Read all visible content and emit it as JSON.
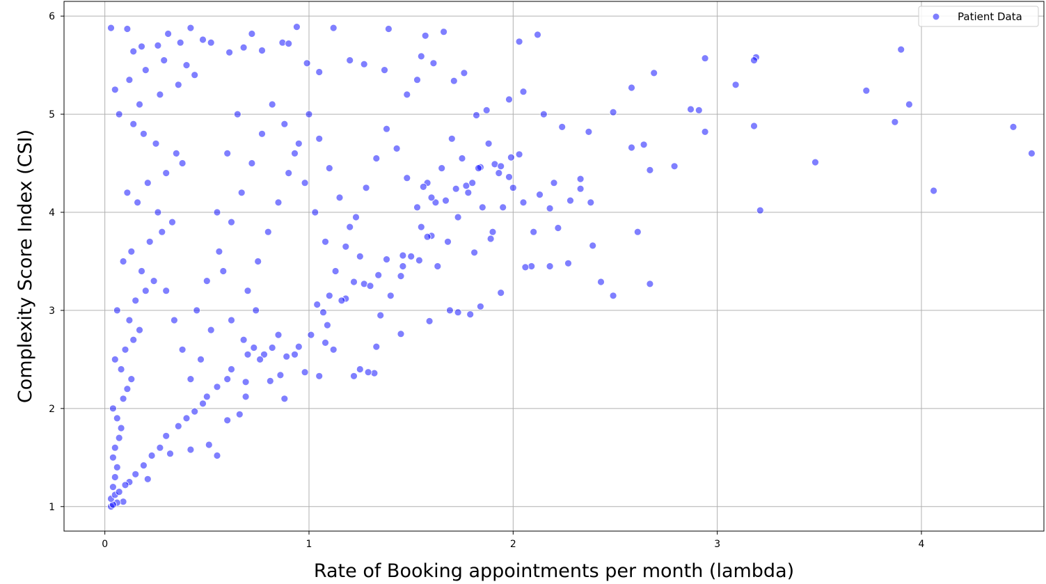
{
  "chart_data": {
    "type": "scatter",
    "title": "",
    "xlabel": "Rate of Booking appointments per month (lambda)",
    "ylabel": "Complexity Score Index (CSI)",
    "xlim": [
      -0.2,
      4.6
    ],
    "ylim": [
      0.75,
      6.15
    ],
    "xticks": [
      0,
      1,
      2,
      3,
      4
    ],
    "xtick_labels": [
      "0",
      "1",
      "2",
      "3",
      "4"
    ],
    "yticks": [
      1,
      2,
      3,
      4,
      5,
      6
    ],
    "ytick_labels": [
      "1",
      "2",
      "3",
      "4",
      "5",
      "6"
    ],
    "grid": true,
    "legend": {
      "position": "top-right",
      "entries": [
        "Patient Data"
      ]
    },
    "series": [
      {
        "name": "Patient Data",
        "color": "#0000ff",
        "alpha": 0.5,
        "edgecolor": "#ffffff",
        "points": [
          [
            0.03,
            5.88
          ],
          [
            0.11,
            5.87
          ],
          [
            0.31,
            5.82
          ],
          [
            0.42,
            5.88
          ],
          [
            0.72,
            5.82
          ],
          [
            0.94,
            5.89
          ],
          [
            1.12,
            5.88
          ],
          [
            1.39,
            5.87
          ],
          [
            1.57,
            5.8
          ],
          [
            1.66,
            5.84
          ],
          [
            2.12,
            5.81
          ],
          [
            2.03,
            5.74
          ],
          [
            3.19,
            5.58
          ],
          [
            3.18,
            5.55
          ],
          [
            3.9,
            5.66
          ],
          [
            2.94,
            5.57
          ],
          [
            2.69,
            5.42
          ],
          [
            3.09,
            5.3
          ],
          [
            2.58,
            5.27
          ],
          [
            3.73,
            5.24
          ],
          [
            3.94,
            5.1
          ],
          [
            2.87,
            5.05
          ],
          [
            2.91,
            5.04
          ],
          [
            3.87,
            4.92
          ],
          [
            2.49,
            5.02
          ],
          [
            3.18,
            4.88
          ],
          [
            4.45,
            4.87
          ],
          [
            2.94,
            4.82
          ],
          [
            4.54,
            4.6
          ],
          [
            2.58,
            4.66
          ],
          [
            2.64,
            4.69
          ],
          [
            2.79,
            4.47
          ],
          [
            3.48,
            4.51
          ],
          [
            2.67,
            4.43
          ],
          [
            4.06,
            4.22
          ],
          [
            3.21,
            4.02
          ],
          [
            2.61,
            3.8
          ],
          [
            2.67,
            3.27
          ],
          [
            2.43,
            3.29
          ],
          [
            2.49,
            3.15
          ],
          [
            2.39,
            3.66
          ],
          [
            2.27,
            3.48
          ],
          [
            2.18,
            3.45
          ],
          [
            2.09,
            3.45
          ],
          [
            2.06,
            3.44
          ],
          [
            1.94,
            3.18
          ],
          [
            1.89,
            3.73
          ],
          [
            1.81,
            3.59
          ],
          [
            1.84,
            3.04
          ],
          [
            1.79,
            2.96
          ],
          [
            1.73,
            2.98
          ],
          [
            1.69,
            3.0
          ],
          [
            1.59,
            2.89
          ],
          [
            1.45,
            2.76
          ],
          [
            1.32,
            2.36
          ],
          [
            1.29,
            2.37
          ],
          [
            1.22,
            2.33
          ],
          [
            1.25,
            2.4
          ],
          [
            1.33,
            2.63
          ],
          [
            1.05,
            2.33
          ],
          [
            0.98,
            2.37
          ],
          [
            0.88,
            2.1
          ],
          [
            0.86,
            2.34
          ],
          [
            0.81,
            2.28
          ],
          [
            0.69,
            2.12
          ],
          [
            0.69,
            2.27
          ],
          [
            0.66,
            1.94
          ],
          [
            0.6,
            1.88
          ],
          [
            0.55,
            1.52
          ],
          [
            0.51,
            1.63
          ],
          [
            0.42,
            1.58
          ],
          [
            0.32,
            1.54
          ],
          [
            0.21,
            1.28
          ],
          [
            0.12,
            1.25
          ],
          [
            0.09,
            1.05
          ],
          [
            0.06,
            1.04
          ],
          [
            0.03,
            1.0
          ],
          [
            0.04,
            1.02
          ],
          [
            0.03,
            1.08
          ],
          [
            0.05,
            1.12
          ],
          [
            0.14,
            5.64
          ],
          [
            0.18,
            5.69
          ],
          [
            0.26,
            5.7
          ],
          [
            0.37,
            5.73
          ],
          [
            0.48,
            5.76
          ],
          [
            0.52,
            5.73
          ],
          [
            0.61,
            5.63
          ],
          [
            0.68,
            5.68
          ],
          [
            0.77,
            5.65
          ],
          [
            0.87,
            5.73
          ],
          [
            0.9,
            5.72
          ],
          [
            0.99,
            5.52
          ],
          [
            1.05,
            5.43
          ],
          [
            1.2,
            5.55
          ],
          [
            1.27,
            5.51
          ],
          [
            1.37,
            5.45
          ],
          [
            1.48,
            5.2
          ],
          [
            1.53,
            5.35
          ],
          [
            1.55,
            5.59
          ],
          [
            1.61,
            5.52
          ],
          [
            1.71,
            5.34
          ],
          [
            1.76,
            5.42
          ],
          [
            1.82,
            4.99
          ],
          [
            1.87,
            5.04
          ],
          [
            1.98,
            5.15
          ],
          [
            2.05,
            5.23
          ],
          [
            2.15,
            5.0
          ],
          [
            2.24,
            4.87
          ],
          [
            2.37,
            4.82
          ],
          [
            2.28,
            4.12
          ],
          [
            2.38,
            4.1
          ],
          [
            2.33,
            4.24
          ],
          [
            2.33,
            4.34
          ],
          [
            2.2,
            4.3
          ],
          [
            2.18,
            4.04
          ],
          [
            2.13,
            4.18
          ],
          [
            2.22,
            3.84
          ],
          [
            2.1,
            3.8
          ],
          [
            2.05,
            4.1
          ],
          [
            1.99,
            4.56
          ],
          [
            2.03,
            4.59
          ],
          [
            1.98,
            4.36
          ],
          [
            1.91,
            4.49
          ],
          [
            1.94,
            4.47
          ],
          [
            1.84,
            4.46
          ],
          [
            1.77,
            4.27
          ],
          [
            1.72,
            4.24
          ],
          [
            1.67,
            4.12
          ],
          [
            1.62,
            4.1
          ],
          [
            1.58,
            4.3
          ],
          [
            1.56,
            4.26
          ],
          [
            1.6,
            3.76
          ],
          [
            1.54,
            3.51
          ],
          [
            1.46,
            3.56
          ],
          [
            1.46,
            3.45
          ],
          [
            1.38,
            3.52
          ],
          [
            1.34,
            3.36
          ],
          [
            1.27,
            3.27
          ],
          [
            1.22,
            3.29
          ],
          [
            1.18,
            3.12
          ],
          [
            1.16,
            3.1
          ],
          [
            1.1,
            3.15
          ],
          [
            1.04,
            3.06
          ],
          [
            1.07,
            2.98
          ],
          [
            1.09,
            2.85
          ],
          [
            1.12,
            2.6
          ],
          [
            1.08,
            2.67
          ],
          [
            1.01,
            2.75
          ],
          [
            0.95,
            2.63
          ],
          [
            0.93,
            2.55
          ],
          [
            0.89,
            2.53
          ],
          [
            0.85,
            2.75
          ],
          [
            0.82,
            2.62
          ],
          [
            0.78,
            2.55
          ],
          [
            0.76,
            2.5
          ],
          [
            0.73,
            2.62
          ],
          [
            0.7,
            2.55
          ],
          [
            0.62,
            2.4
          ],
          [
            0.6,
            2.3
          ],
          [
            0.55,
            2.22
          ],
          [
            0.5,
            2.12
          ],
          [
            0.48,
            2.05
          ],
          [
            0.44,
            1.97
          ],
          [
            0.4,
            1.9
          ],
          [
            0.36,
            1.82
          ],
          [
            0.3,
            1.72
          ],
          [
            0.27,
            1.6
          ],
          [
            0.23,
            1.52
          ],
          [
            0.19,
            1.42
          ],
          [
            0.15,
            1.33
          ],
          [
            0.1,
            1.22
          ],
          [
            0.07,
            1.15
          ],
          [
            0.04,
            1.2
          ],
          [
            0.05,
            1.3
          ],
          [
            0.06,
            1.4
          ],
          [
            0.04,
            1.5
          ],
          [
            0.05,
            1.6
          ],
          [
            0.07,
            1.7
          ],
          [
            0.08,
            1.8
          ],
          [
            0.06,
            1.9
          ],
          [
            0.04,
            2.0
          ],
          [
            0.09,
            2.1
          ],
          [
            0.11,
            2.2
          ],
          [
            0.13,
            2.3
          ],
          [
            0.08,
            2.4
          ],
          [
            0.05,
            2.5
          ],
          [
            0.1,
            2.6
          ],
          [
            0.14,
            2.7
          ],
          [
            0.17,
            2.8
          ],
          [
            0.12,
            2.9
          ],
          [
            0.06,
            3.0
          ],
          [
            0.15,
            3.1
          ],
          [
            0.2,
            3.2
          ],
          [
            0.24,
            3.3
          ],
          [
            0.18,
            3.4
          ],
          [
            0.09,
            3.5
          ],
          [
            0.13,
            3.6
          ],
          [
            0.22,
            3.7
          ],
          [
            0.28,
            3.8
          ],
          [
            0.33,
            3.9
          ],
          [
            0.26,
            4.0
          ],
          [
            0.16,
            4.1
          ],
          [
            0.11,
            4.2
          ],
          [
            0.21,
            4.3
          ],
          [
            0.3,
            4.4
          ],
          [
            0.38,
            4.5
          ],
          [
            0.35,
            4.6
          ],
          [
            0.25,
            4.7
          ],
          [
            0.19,
            4.8
          ],
          [
            0.14,
            4.9
          ],
          [
            0.07,
            5.0
          ],
          [
            0.17,
            5.1
          ],
          [
            0.27,
            5.2
          ],
          [
            0.36,
            5.3
          ],
          [
            0.44,
            5.4
          ],
          [
            0.4,
            5.5
          ],
          [
            0.29,
            5.55
          ],
          [
            0.2,
            5.45
          ],
          [
            0.12,
            5.35
          ],
          [
            0.05,
            5.25
          ],
          [
            0.45,
            3.0
          ],
          [
            0.5,
            3.3
          ],
          [
            0.56,
            3.6
          ],
          [
            0.62,
            3.9
          ],
          [
            0.67,
            4.2
          ],
          [
            0.72,
            4.5
          ],
          [
            0.77,
            4.8
          ],
          [
            0.82,
            5.1
          ],
          [
            0.88,
            4.9
          ],
          [
            0.93,
            4.6
          ],
          [
            0.98,
            4.3
          ],
          [
            1.03,
            4.0
          ],
          [
            1.08,
            3.7
          ],
          [
            1.13,
            3.4
          ],
          [
            1.18,
            3.65
          ],
          [
            1.23,
            3.95
          ],
          [
            1.28,
            4.25
          ],
          [
            1.33,
            4.55
          ],
          [
            1.38,
            4.85
          ],
          [
            1.43,
            4.65
          ],
          [
            1.48,
            4.35
          ],
          [
            1.53,
            4.05
          ],
          [
            1.58,
            3.75
          ],
          [
            1.63,
            3.45
          ],
          [
            1.68,
            3.7
          ],
          [
            1.73,
            3.95
          ],
          [
            1.78,
            4.2
          ],
          [
            1.83,
            4.45
          ],
          [
            1.88,
            4.7
          ],
          [
            1.93,
            4.4
          ],
          [
            0.55,
            4.0
          ],
          [
            0.6,
            4.6
          ],
          [
            0.65,
            5.0
          ],
          [
            0.58,
            3.4
          ],
          [
            0.52,
            2.8
          ],
          [
            0.47,
            2.5
          ],
          [
            0.42,
            2.3
          ],
          [
            0.38,
            2.6
          ],
          [
            0.34,
            2.9
          ],
          [
            0.3,
            3.2
          ],
          [
            0.7,
            3.2
          ],
          [
            0.75,
            3.5
          ],
          [
            0.8,
            3.8
          ],
          [
            0.85,
            4.1
          ],
          [
            0.9,
            4.4
          ],
          [
            0.95,
            4.7
          ],
          [
            1.0,
            5.0
          ],
          [
            1.05,
            4.75
          ],
          [
            1.1,
            4.45
          ],
          [
            1.15,
            4.15
          ],
          [
            1.2,
            3.85
          ],
          [
            1.25,
            3.55
          ],
          [
            1.3,
            3.25
          ],
          [
            1.35,
            2.95
          ],
          [
            1.4,
            3.15
          ],
          [
            1.45,
            3.35
          ],
          [
            1.5,
            3.55
          ],
          [
            1.55,
            3.85
          ],
          [
            1.6,
            4.15
          ],
          [
            1.65,
            4.45
          ],
          [
            1.7,
            4.75
          ],
          [
            1.75,
            4.55
          ],
          [
            1.8,
            4.3
          ],
          [
            1.85,
            4.05
          ],
          [
            1.9,
            3.8
          ],
          [
            1.95,
            4.05
          ],
          [
            2.0,
            4.25
          ],
          [
            0.62,
            2.9
          ],
          [
            0.68,
            2.7
          ],
          [
            0.74,
            3.0
          ]
        ]
      }
    ]
  }
}
